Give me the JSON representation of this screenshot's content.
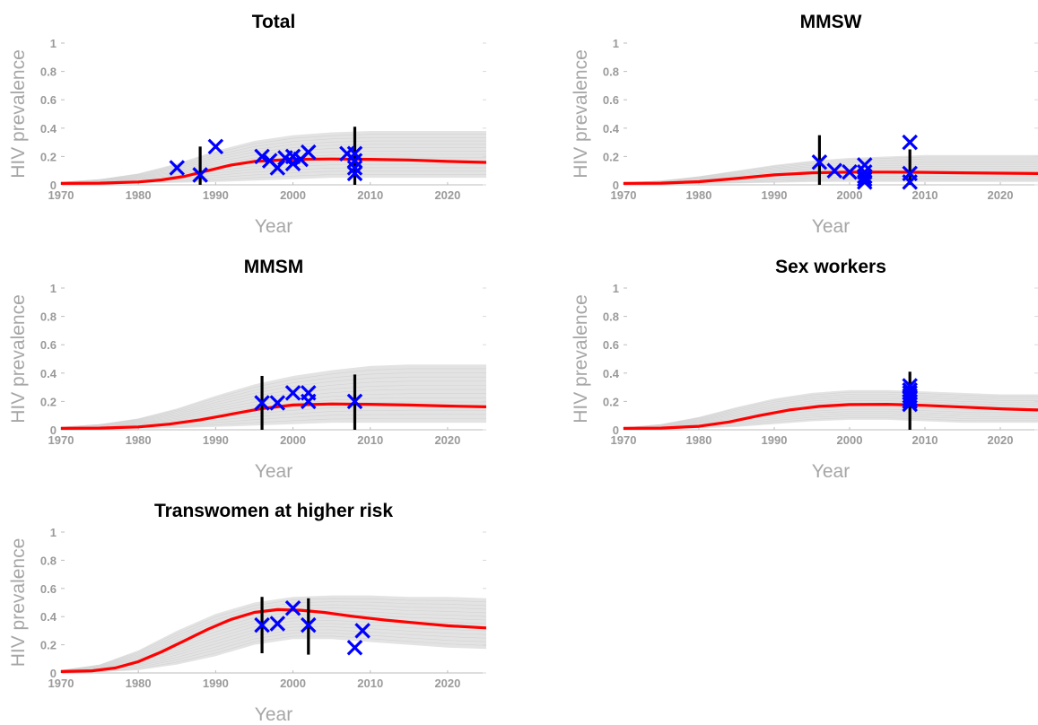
{
  "chart_data": [
    {
      "type": "line",
      "title": "Total",
      "xlabel": "Year",
      "ylabel": "HIV prevalence",
      "xlim": [
        1970,
        2025
      ],
      "ylim": [
        0,
        1
      ],
      "xticks": [
        "1970",
        "1980",
        "1990",
        "2000",
        "2010",
        "2020"
      ],
      "yticks": [
        "0",
        "0.2",
        "0.4",
        "0.6",
        "0.8",
        "1"
      ],
      "grid": false,
      "series": [
        {
          "kind": "line",
          "color": "#ff0000",
          "x": [
            1970,
            1975,
            1980,
            1983,
            1986,
            1989,
            1992,
            1995,
            2000,
            2005,
            2010,
            2015,
            2020,
            2025
          ],
          "y": [
            0.01,
            0.012,
            0.02,
            0.035,
            0.06,
            0.1,
            0.14,
            0.165,
            0.18,
            0.182,
            0.18,
            0.175,
            0.165,
            0.158
          ]
        },
        {
          "kind": "markers",
          "marker": "x",
          "color": "#0000ff",
          "x": [
            1985,
            1988,
            1990,
            1996,
            1997,
            1998,
            1999,
            2000,
            2000,
            2001,
            2002,
            2007,
            2008,
            2008,
            2008,
            2008
          ],
          "y": [
            0.12,
            0.07,
            0.27,
            0.2,
            0.17,
            0.12,
            0.19,
            0.2,
            0.15,
            0.18,
            0.23,
            0.22,
            0.22,
            0.17,
            0.12,
            0.08
          ]
        },
        {
          "kind": "errorbars",
          "color": "#000000",
          "x": [
            1988,
            2008
          ],
          "low": [
            0.0,
            0.0
          ],
          "high": [
            0.27,
            0.41
          ]
        },
        {
          "kind": "band",
          "color": "#e3e3e3",
          "x": [
            1970,
            1975,
            1980,
            1985,
            1990,
            1995,
            2000,
            2005,
            2010,
            2015,
            2020,
            2025
          ],
          "low": [
            0.0,
            0.005,
            0.01,
            0.015,
            0.02,
            0.03,
            0.04,
            0.05,
            0.05,
            0.05,
            0.05,
            0.05
          ],
          "high": [
            0.02,
            0.04,
            0.08,
            0.15,
            0.24,
            0.31,
            0.35,
            0.37,
            0.38,
            0.38,
            0.38,
            0.38
          ]
        }
      ]
    },
    {
      "type": "line",
      "title": "MMSW",
      "xlabel": "Year",
      "ylabel": "HIV prevalence",
      "xlim": [
        1970,
        2025
      ],
      "ylim": [
        0,
        1
      ],
      "xticks": [
        "1970",
        "1980",
        "1990",
        "2000",
        "2010",
        "2020"
      ],
      "yticks": [
        "0",
        "0.2",
        "0.4",
        "0.6",
        "0.8",
        "1"
      ],
      "grid": false,
      "series": [
        {
          "kind": "line",
          "color": "#ff0000",
          "x": [
            1970,
            1975,
            1980,
            1985,
            1990,
            1995,
            2000,
            2005,
            2010,
            2015,
            2020,
            2025
          ],
          "y": [
            0.01,
            0.012,
            0.022,
            0.045,
            0.07,
            0.085,
            0.09,
            0.09,
            0.088,
            0.085,
            0.082,
            0.08
          ]
        },
        {
          "kind": "markers",
          "marker": "x",
          "color": "#0000ff",
          "x": [
            1996,
            1998,
            2000,
            2002,
            2002,
            2002,
            2002,
            2002,
            2008,
            2008,
            2008
          ],
          "y": [
            0.16,
            0.1,
            0.09,
            0.14,
            0.09,
            0.06,
            0.04,
            0.02,
            0.3,
            0.08,
            0.02
          ]
        },
        {
          "kind": "errorbars",
          "color": "#000000",
          "x": [
            1996,
            2008
          ],
          "low": [
            0.0,
            0.0
          ],
          "high": [
            0.35,
            0.25
          ]
        },
        {
          "kind": "band",
          "color": "#e3e3e3",
          "x": [
            1970,
            1975,
            1980,
            1985,
            1990,
            1995,
            2000,
            2005,
            2010,
            2015,
            2020,
            2025
          ],
          "low": [
            0.0,
            0.003,
            0.006,
            0.01,
            0.015,
            0.02,
            0.02,
            0.02,
            0.02,
            0.02,
            0.02,
            0.02
          ],
          "high": [
            0.015,
            0.03,
            0.06,
            0.1,
            0.14,
            0.17,
            0.19,
            0.2,
            0.21,
            0.21,
            0.21,
            0.21
          ]
        }
      ]
    },
    {
      "type": "line",
      "title": "MMSM",
      "xlabel": "Year",
      "ylabel": "HIV prevalence",
      "xlim": [
        1970,
        2025
      ],
      "ylim": [
        0,
        1
      ],
      "xticks": [
        "1970",
        "1980",
        "1990",
        "2000",
        "2010",
        "2020"
      ],
      "yticks": [
        "0",
        "0.2",
        "0.4",
        "0.6",
        "0.8",
        "1"
      ],
      "grid": false,
      "series": [
        {
          "kind": "line",
          "color": "#ff0000",
          "x": [
            1970,
            1975,
            1980,
            1984,
            1988,
            1992,
            1996,
            2000,
            2005,
            2010,
            2015,
            2020,
            2025
          ],
          "y": [
            0.01,
            0.012,
            0.02,
            0.04,
            0.07,
            0.11,
            0.15,
            0.175,
            0.182,
            0.18,
            0.175,
            0.168,
            0.162
          ]
        },
        {
          "kind": "markers",
          "marker": "x",
          "color": "#0000ff",
          "x": [
            1996,
            1998,
            2000,
            2002,
            2002,
            2008
          ],
          "y": [
            0.19,
            0.19,
            0.26,
            0.26,
            0.2,
            0.2
          ]
        },
        {
          "kind": "errorbars",
          "color": "#000000",
          "x": [
            1996,
            2008
          ],
          "low": [
            0.0,
            0.0
          ],
          "high": [
            0.38,
            0.39
          ]
        },
        {
          "kind": "band",
          "color": "#e3e3e3",
          "x": [
            1970,
            1975,
            1980,
            1985,
            1990,
            1995,
            2000,
            2005,
            2010,
            2015,
            2020,
            2025
          ],
          "low": [
            0.0,
            0.004,
            0.008,
            0.012,
            0.02,
            0.03,
            0.04,
            0.05,
            0.05,
            0.05,
            0.05,
            0.05
          ],
          "high": [
            0.02,
            0.04,
            0.08,
            0.15,
            0.24,
            0.32,
            0.38,
            0.42,
            0.45,
            0.46,
            0.46,
            0.46
          ]
        }
      ]
    },
    {
      "type": "line",
      "title": "Sex workers",
      "xlabel": "Year",
      "ylabel": "HIV prevalence",
      "xlim": [
        1970,
        2025
      ],
      "ylim": [
        0,
        1
      ],
      "xticks": [
        "1970",
        "1980",
        "1990",
        "2000",
        "2010",
        "2020"
      ],
      "yticks": [
        "0",
        "0.2",
        "0.4",
        "0.6",
        "0.8",
        "1"
      ],
      "grid": false,
      "series": [
        {
          "kind": "line",
          "color": "#ff0000",
          "x": [
            1970,
            1975,
            1980,
            1984,
            1988,
            1992,
            1996,
            2000,
            2005,
            2010,
            2015,
            2020,
            2025
          ],
          "y": [
            0.01,
            0.012,
            0.025,
            0.055,
            0.1,
            0.14,
            0.165,
            0.178,
            0.18,
            0.172,
            0.16,
            0.148,
            0.14
          ]
        },
        {
          "kind": "markers",
          "marker": "x",
          "color": "#0000ff",
          "x": [
            2008,
            2008,
            2008,
            2008,
            2008,
            2008,
            2008
          ],
          "y": [
            0.31,
            0.28,
            0.26,
            0.24,
            0.22,
            0.2,
            0.18
          ]
        },
        {
          "kind": "errorbars",
          "color": "#000000",
          "x": [
            2008
          ],
          "low": [
            0.0
          ],
          "high": [
            0.41
          ]
        },
        {
          "kind": "band",
          "color": "#e3e3e3",
          "x": [
            1970,
            1975,
            1980,
            1985,
            1990,
            1995,
            2000,
            2005,
            2010,
            2015,
            2020,
            2025
          ],
          "low": [
            0.0,
            0.005,
            0.01,
            0.02,
            0.04,
            0.06,
            0.07,
            0.07,
            0.06,
            0.05,
            0.05,
            0.05
          ],
          "high": [
            0.015,
            0.04,
            0.09,
            0.16,
            0.22,
            0.26,
            0.28,
            0.28,
            0.27,
            0.26,
            0.25,
            0.25
          ]
        }
      ]
    },
    {
      "type": "line",
      "title": "Transwomen at higher risk",
      "xlabel": "Year",
      "ylabel": "HIV prevalence",
      "xlim": [
        1970,
        2025
      ],
      "ylim": [
        0,
        1
      ],
      "xticks": [
        "1970",
        "1980",
        "1990",
        "2000",
        "2010",
        "2020"
      ],
      "yticks": [
        "0",
        "0.2",
        "0.4",
        "0.6",
        "0.8",
        "1"
      ],
      "grid": false,
      "series": [
        {
          "kind": "line",
          "color": "#ff0000",
          "x": [
            1970,
            1974,
            1977,
            1980,
            1983,
            1986,
            1989,
            1992,
            1995,
            1998,
            2001,
            2004,
            2008,
            2012,
            2016,
            2020,
            2025
          ],
          "y": [
            0.01,
            0.015,
            0.035,
            0.08,
            0.15,
            0.23,
            0.31,
            0.38,
            0.43,
            0.45,
            0.445,
            0.43,
            0.4,
            0.375,
            0.355,
            0.335,
            0.32
          ]
        },
        {
          "kind": "markers",
          "marker": "x",
          "color": "#0000ff",
          "x": [
            1996,
            1998,
            2000,
            2002,
            2008,
            2009
          ],
          "y": [
            0.34,
            0.35,
            0.46,
            0.34,
            0.18,
            0.3
          ]
        },
        {
          "kind": "errorbars",
          "color": "#000000",
          "x": [
            1996,
            2002
          ],
          "low": [
            0.14,
            0.13
          ],
          "high": [
            0.54,
            0.53
          ]
        },
        {
          "kind": "band",
          "color": "#e3e3e3",
          "x": [
            1970,
            1975,
            1980,
            1985,
            1990,
            1995,
            2000,
            2005,
            2010,
            2015,
            2020,
            2025
          ],
          "low": [
            0.0,
            0.005,
            0.02,
            0.06,
            0.12,
            0.2,
            0.24,
            0.24,
            0.22,
            0.2,
            0.18,
            0.17
          ],
          "high": [
            0.02,
            0.06,
            0.16,
            0.3,
            0.42,
            0.5,
            0.54,
            0.55,
            0.55,
            0.54,
            0.54,
            0.53
          ]
        }
      ]
    }
  ]
}
